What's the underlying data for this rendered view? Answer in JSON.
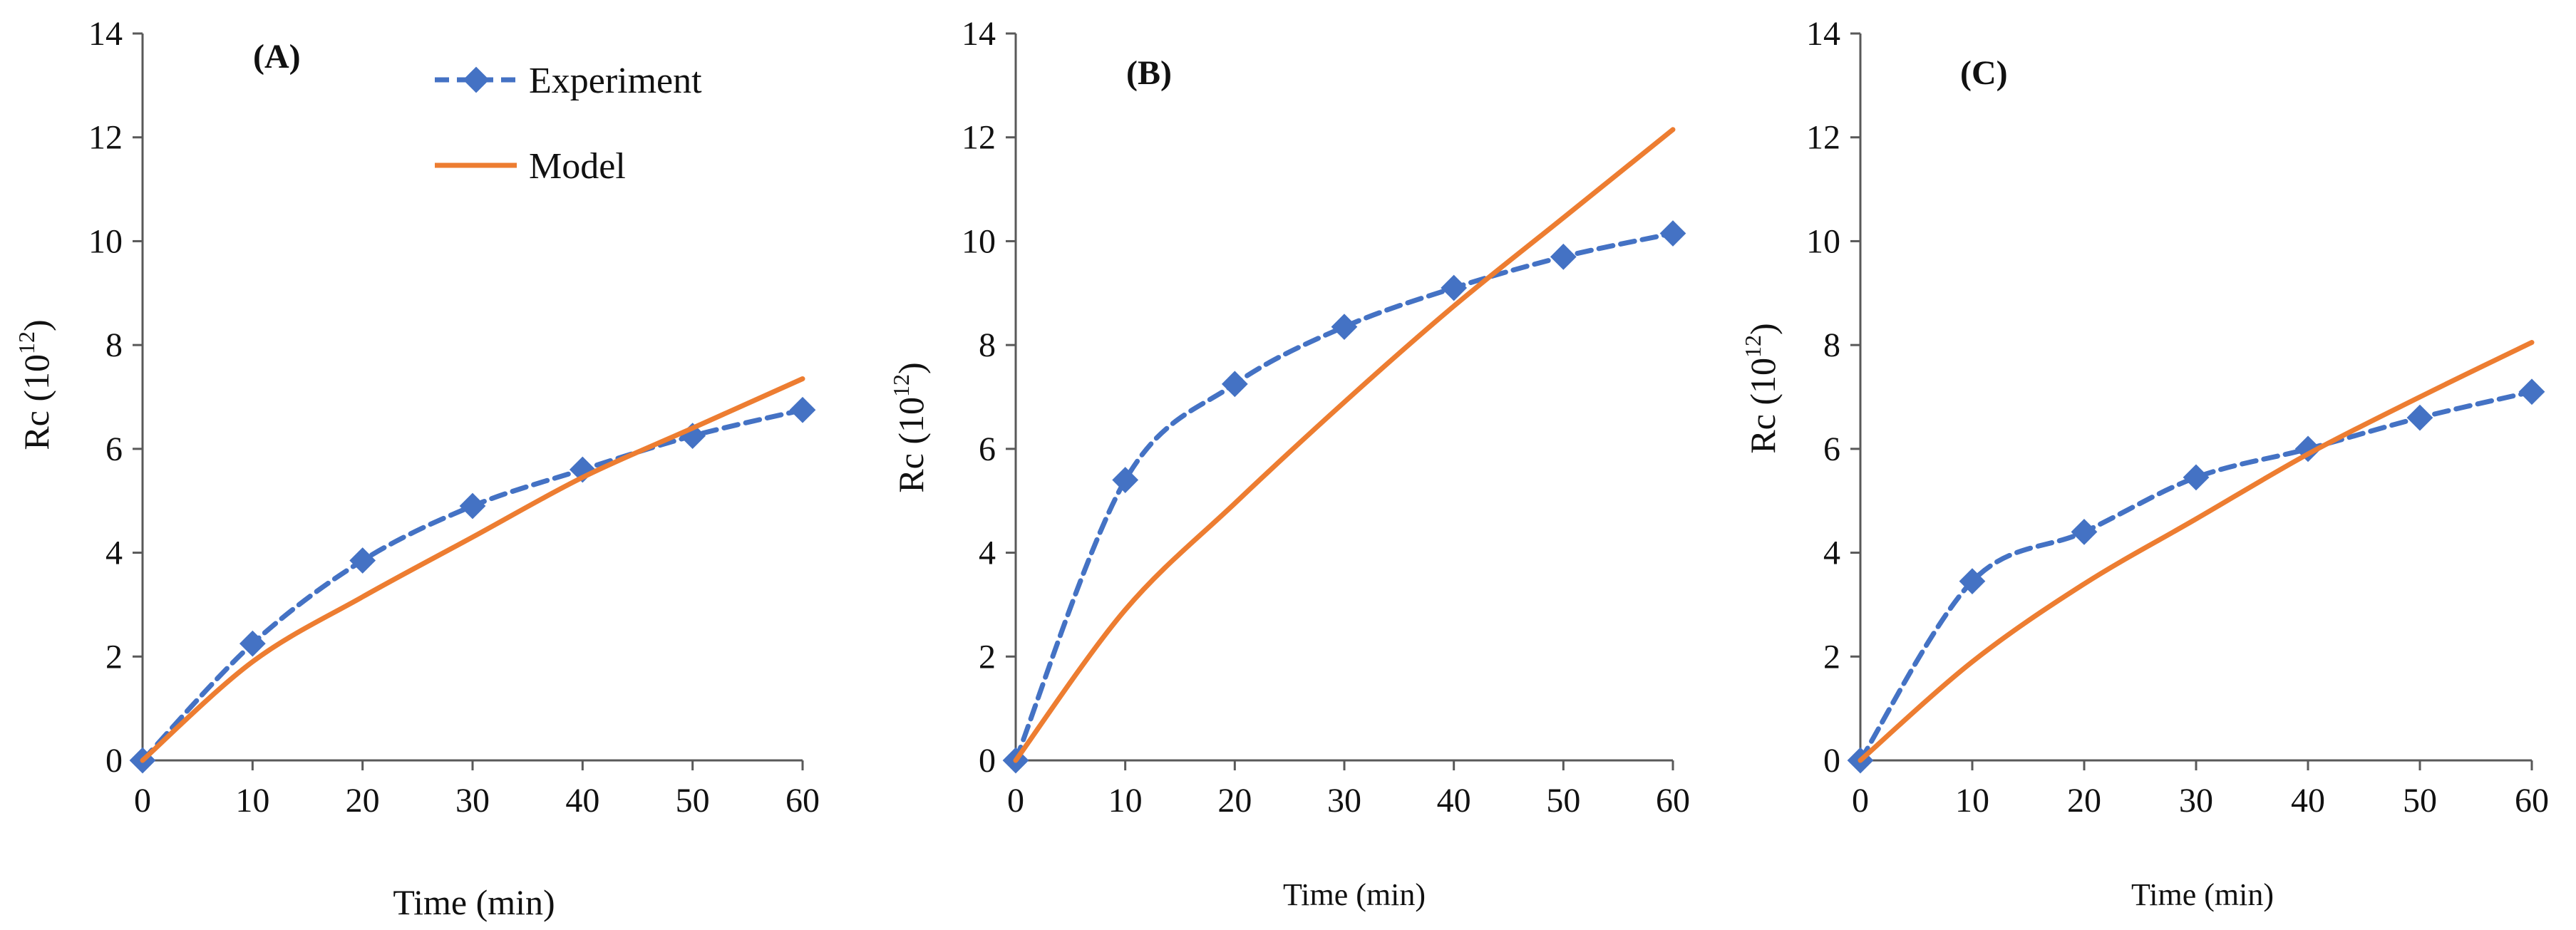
{
  "chart_data": [
    {
      "type": "line",
      "panel_label": "(A)",
      "xlabel": "Time (min)",
      "ylabel_main": "Rc (10",
      "ylabel_sup": "12",
      "ylabel_close": ")",
      "x": [
        0,
        10,
        20,
        30,
        40,
        50,
        60
      ],
      "xticks": [
        "0",
        "10",
        "20",
        "30",
        "40",
        "50",
        "60"
      ],
      "yticks": [
        "0",
        "2",
        "4",
        "6",
        "8",
        "10",
        "12",
        "14"
      ],
      "xlim": [
        0,
        60
      ],
      "ylim": [
        0,
        14
      ],
      "legend": {
        "placement": "top-right",
        "entries": [
          "Experiment",
          "Model"
        ]
      },
      "series": [
        {
          "name": "Experiment",
          "style": "dashed-diamond",
          "values": [
            0,
            2.25,
            3.85,
            4.9,
            5.6,
            6.25,
            6.75
          ]
        },
        {
          "name": "Model",
          "style": "solid",
          "values": [
            0,
            1.9,
            3.15,
            4.3,
            5.45,
            6.4,
            7.35
          ]
        }
      ]
    },
    {
      "type": "line",
      "panel_label": "(B)",
      "xlabel": "Time (min)",
      "ylabel_main": "Rc (10",
      "ylabel_sup": "12",
      "ylabel_close": ")",
      "x": [
        0,
        10,
        20,
        30,
        40,
        50,
        60
      ],
      "xticks": [
        "0",
        "10",
        "20",
        "30",
        "40",
        "50",
        "60"
      ],
      "yticks": [
        "0",
        "2",
        "4",
        "6",
        "8",
        "10",
        "12",
        "14"
      ],
      "xlim": [
        0,
        60
      ],
      "ylim": [
        0,
        14
      ],
      "series": [
        {
          "name": "Experiment",
          "style": "dashed-diamond",
          "values": [
            0,
            5.4,
            7.25,
            8.35,
            9.1,
            9.7,
            10.15
          ]
        },
        {
          "name": "Model",
          "style": "solid",
          "values": [
            0,
            2.9,
            4.95,
            6.9,
            8.75,
            10.45,
            12.15
          ]
        }
      ]
    },
    {
      "type": "line",
      "panel_label": "(C)",
      "xlabel": "Time  (min)",
      "ylabel_main": "Rc (10",
      "ylabel_sup": "12",
      "ylabel_close": ")",
      "x": [
        0,
        10,
        20,
        30,
        40,
        50,
        60
      ],
      "xticks": [
        "0",
        "10",
        "20",
        "30",
        "40",
        "50",
        "60"
      ],
      "yticks": [
        "0",
        "2",
        "4",
        "6",
        "8",
        "10",
        "12",
        "14"
      ],
      "xlim": [
        0,
        60
      ],
      "ylim": [
        0,
        14
      ],
      "series": [
        {
          "name": "Experiment",
          "style": "dashed-diamond",
          "values": [
            0,
            3.45,
            4.4,
            5.45,
            6.0,
            6.6,
            7.1
          ]
        },
        {
          "name": "Model",
          "style": "solid",
          "values": [
            0,
            1.9,
            3.4,
            4.65,
            5.9,
            7.0,
            8.05
          ]
        }
      ]
    }
  ],
  "colors": {
    "experiment": "#4472C4",
    "model": "#ED7D31",
    "axis": "#595959",
    "text": "#111111"
  }
}
